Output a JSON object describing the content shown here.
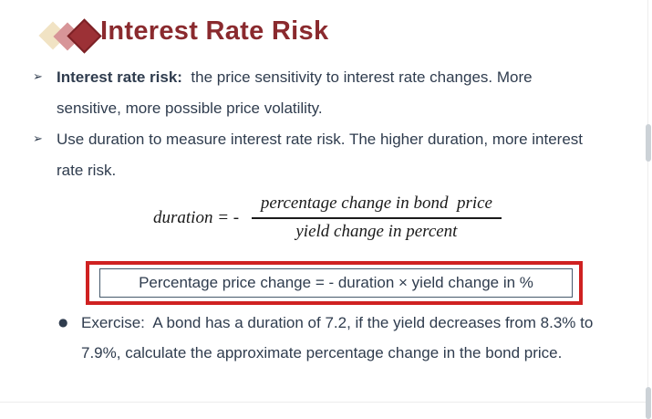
{
  "colors": {
    "title_text": "#8a2a2e",
    "body_text": "#2f3c4e",
    "formula_text": "#1a1a1a",
    "highlight_border_red": "#cf2121",
    "inner_box_border": "#45586b",
    "diamond_cream": "#f1e3c4",
    "diamond_rose": "#d79598",
    "diamond_red": "#9c3136"
  },
  "glyphs": {
    "arrow_bullet": "➢",
    "circle_bullet": "●"
  },
  "slide": {
    "title": "Interest Rate Risk",
    "bullets": [
      {
        "bold_label": "Interest rate risk:",
        "text": "  the price sensitivity to interest rate changes. More sensitive, more possible price volatility."
      },
      {
        "bold_label": "",
        "text": "Use duration to measure interest rate risk. The higher duration, more interest rate risk."
      }
    ],
    "formula": {
      "lhs": "duration = - ",
      "numerator": "percentage change in bond  price",
      "denominator": "yield change in percent"
    },
    "boxed_formula": "Percentage price change = - duration × yield change in %",
    "exercise": "Exercise:  A bond has a duration of 7.2, if the yield decreases from 8.3% to 7.9%, calculate the approximate percentage change in the bond price."
  }
}
